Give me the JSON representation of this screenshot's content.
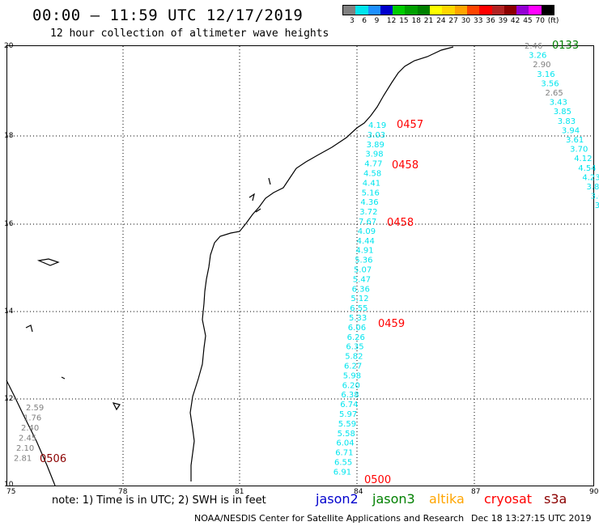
{
  "header": {
    "title": "00:00 – 11:59 UTC 12/17/2019",
    "subtitle": "12 hour collection of altimeter wave heights"
  },
  "legend": {
    "labels": [
      "3",
      "6",
      "9",
      "12",
      "15",
      "18",
      "21",
      "24",
      "27",
      "30",
      "33",
      "36",
      "39",
      "42",
      "45",
      "70",
      "(ft)"
    ],
    "colors": [
      "#808080",
      "#00e5ee",
      "#1e90ff",
      "#0000cd",
      "#00cd00",
      "#00a000",
      "#008000",
      "#ffff00",
      "#ffd700",
      "#ffa500",
      "#ff4500",
      "#ff0000",
      "#b22222",
      "#8b0000",
      "#9400d3",
      "#ff00ff",
      "#000000"
    ]
  },
  "axes": {
    "lon_labels": [
      "75",
      "78",
      "81",
      "84",
      "87",
      "90"
    ],
    "lat_labels": [
      "20",
      "18",
      "16",
      "14",
      "12",
      "10"
    ]
  },
  "tracks": [
    {
      "color": "#808080",
      "readings": [
        "2.46"
      ]
    },
    {
      "color": "#00e5ee",
      "readings": [
        "3.26"
      ]
    },
    {
      "color": "#808080",
      "readings": [
        "2.90"
      ]
    },
    {
      "color": "#00e5ee",
      "readings": [
        "3.16",
        "3.56"
      ]
    },
    {
      "color": "#808080",
      "readings": [
        "2.65"
      ]
    },
    {
      "color": "#00e5ee",
      "readings": [
        "3.43",
        "3.85",
        "3.83",
        "3.94",
        "3.61",
        "3.70",
        "4.12",
        "4.54",
        "4.23",
        "3.85",
        "3.66",
        "3.87",
        "3.45",
        "3.7"
      ]
    }
  ],
  "track_center": {
    "readings": [
      "4.19",
      "3.03",
      "3.89",
      "3.98",
      "4.77",
      "4.58",
      "4.41",
      "5.16",
      "4.36",
      "3.72",
      "7.67",
      "4.09",
      "4.44",
      "4.91",
      "5.36",
      "5.07",
      "5.47",
      "6.36",
      "5.12",
      "6.55",
      "5.33",
      "6.06",
      "6.26",
      "6.35",
      "5.82",
      "6.27",
      "5.98",
      "6.20",
      "6.38",
      "6.74",
      "5.97",
      "5.59",
      "5.58",
      "6.04",
      "6.71",
      "6.55",
      "6.91"
    ],
    "color": "#00e5ee"
  },
  "track_left": {
    "readings": [
      "2.59",
      "1.76",
      "2.40",
      "2.45",
      "2.10",
      "2.81"
    ],
    "color": "#808080"
  },
  "time_labels": [
    {
      "text": "0133",
      "color": "#008000"
    },
    {
      "text": "0457",
      "color": "#ff0000"
    },
    {
      "text": "0458",
      "color": "#ff0000"
    },
    {
      "text": "0458",
      "color": "#ff0000"
    },
    {
      "text": "0459",
      "color": "#ff0000"
    },
    {
      "text": "0506",
      "color": "#8b0000"
    },
    {
      "text": "0500",
      "color": "#ff0000"
    }
  ],
  "footer": {
    "note": "note:  1) Time is in UTC;  2) SWH is in feet",
    "satellites": [
      {
        "name": "jason2",
        "color": "#0000cd"
      },
      {
        "name": "jason3",
        "color": "#008000"
      },
      {
        "name": "altika",
        "color": "#ffa500"
      },
      {
        "name": "cryosat",
        "color": "#ff0000"
      },
      {
        "name": "s3a",
        "color": "#8b0000"
      }
    ],
    "credit": "NOAA/NESDIS Center for Satellite Applications and Research",
    "timestamp": "Dec 18 13:27:15 UTC 2019"
  }
}
